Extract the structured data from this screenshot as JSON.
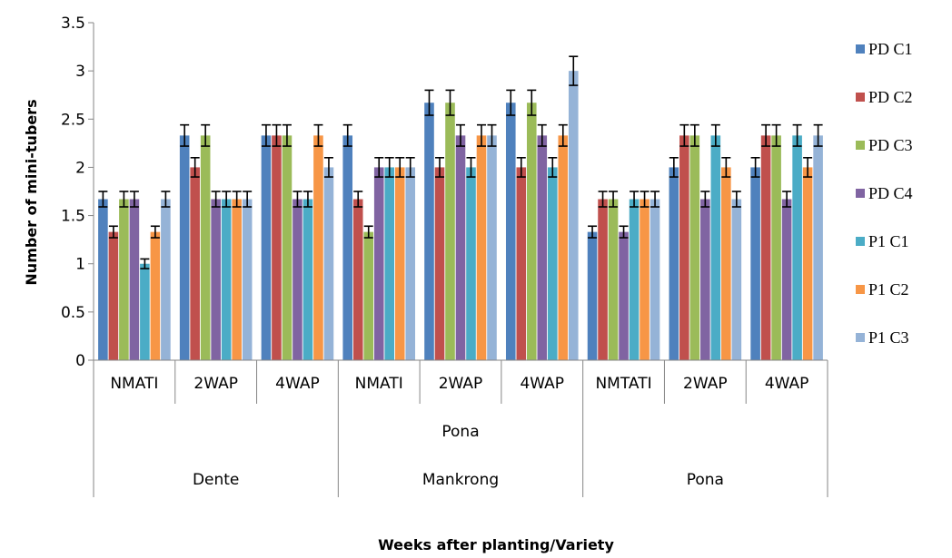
{
  "chart_data": {
    "type": "bar",
    "ylabel": "Number of mini-tubers",
    "xlabel": "Weeks after planting/Variety",
    "ylim": [
      0,
      3.5
    ],
    "y_ticks": [
      "0",
      "0.5",
      "1",
      "1.5",
      "2",
      "2.5",
      "3",
      "3.5"
    ],
    "categories": [
      "NMATI",
      "2WAP",
      "4WAP",
      "NMATI",
      "2WAP",
      "4WAP",
      "NMTATI",
      "2WAP",
      "4WAP"
    ],
    "groups_level2": [
      {
        "label": "",
        "span": 3
      },
      {
        "label": "Pona",
        "span": 3
      },
      {
        "label": "",
        "span": 3
      }
    ],
    "groups_level3": [
      {
        "label": "Dente",
        "span": 3
      },
      {
        "label": "Mankrong",
        "span": 3
      },
      {
        "label": "Pona",
        "span": 3
      }
    ],
    "legend_position": "right",
    "grid": false,
    "series": [
      {
        "name": "PD C1",
        "color": "#4F81BD",
        "values": [
          1.67,
          2.33,
          2.33,
          2.33,
          2.67,
          2.67,
          1.33,
          2.0,
          2.0
        ],
        "errors": [
          0.08,
          0.11,
          0.11,
          0.11,
          0.13,
          0.13,
          0.06,
          0.1,
          0.1
        ]
      },
      {
        "name": "PD C2",
        "color": "#C0504D",
        "values": [
          1.33,
          2.0,
          2.33,
          1.67,
          2.0,
          2.0,
          1.67,
          2.33,
          2.33
        ],
        "errors": [
          0.06,
          0.1,
          0.11,
          0.08,
          0.1,
          0.1,
          0.08,
          0.11,
          0.11
        ]
      },
      {
        "name": "PD C3",
        "color": "#9BBB59",
        "values": [
          1.67,
          2.33,
          2.33,
          1.33,
          2.67,
          2.67,
          1.67,
          2.33,
          2.33
        ],
        "errors": [
          0.08,
          0.11,
          0.11,
          0.06,
          0.13,
          0.13,
          0.08,
          0.11,
          0.11
        ]
      },
      {
        "name": "PD C4",
        "color": "#8064A2",
        "values": [
          1.67,
          1.67,
          1.67,
          2.0,
          2.33,
          2.33,
          1.33,
          1.67,
          1.67
        ],
        "errors": [
          0.08,
          0.08,
          0.08,
          0.1,
          0.11,
          0.11,
          0.06,
          0.08,
          0.08
        ]
      },
      {
        "name": "P1 C1",
        "color": "#4BACC6",
        "values": [
          1.0,
          1.67,
          1.67,
          2.0,
          2.0,
          2.0,
          1.67,
          2.33,
          2.33
        ],
        "errors": [
          0.05,
          0.08,
          0.08,
          0.1,
          0.1,
          0.1,
          0.08,
          0.11,
          0.11
        ]
      },
      {
        "name": "P1 C2",
        "color": "#F79646",
        "values": [
          1.33,
          1.67,
          2.33,
          2.0,
          2.33,
          2.33,
          1.67,
          2.0,
          2.0
        ],
        "errors": [
          0.06,
          0.08,
          0.11,
          0.1,
          0.11,
          0.11,
          0.08,
          0.1,
          0.1
        ]
      },
      {
        "name": "P1 C3",
        "color": "#95B3D7",
        "values": [
          1.67,
          1.67,
          2.0,
          2.0,
          2.33,
          3.0,
          1.67,
          1.67,
          2.33
        ],
        "errors": [
          0.08,
          0.08,
          0.1,
          0.1,
          0.11,
          0.15,
          0.08,
          0.08,
          0.11
        ]
      }
    ]
  }
}
